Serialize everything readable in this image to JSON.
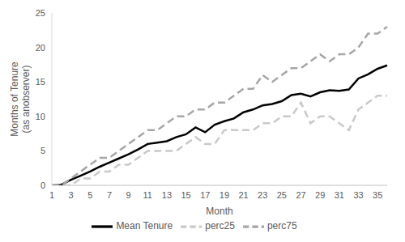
{
  "chart_data": {
    "type": "line",
    "xlabel": "Month",
    "ylabel": "Months of Tenure (as anobserver)",
    "categories": [
      1,
      null,
      3,
      null,
      5,
      null,
      7,
      null,
      9,
      null,
      11,
      null,
      13,
      null,
      15,
      null,
      17,
      null,
      19,
      null,
      21,
      null,
      23,
      null,
      25,
      null,
      27,
      null,
      29,
      null,
      31,
      null,
      33,
      null,
      35,
      null
    ],
    "series": [
      {
        "name": "Mean Tenure",
        "color": "#000000",
        "line_style": "solid",
        "marker": "none",
        "values": [
          0,
          0.1,
          0.8,
          1.4,
          2,
          2.7,
          3.3,
          3.9,
          4.5,
          5.2,
          6,
          6.2,
          6.4,
          7,
          7.4,
          8.4,
          7.7,
          8.8,
          9.3,
          9.7,
          10.6,
          11,
          11.6,
          11.8,
          12.2,
          13.1,
          13.3,
          12.9,
          13.5,
          13.8,
          13.7,
          13.9,
          15.5,
          16.1,
          16.9,
          17.4
        ]
      },
      {
        "name": "perc25",
        "color": "#c9c9c9",
        "line_style": "dashed",
        "marker": "none",
        "values": [
          0,
          0,
          0,
          1,
          1,
          2,
          2,
          3,
          3,
          4,
          5,
          5,
          5,
          5,
          6,
          7,
          6,
          6,
          8,
          8,
          8,
          8,
          9,
          9,
          10,
          10,
          12,
          9,
          10,
          10,
          9,
          8,
          11,
          12,
          13,
          13
        ]
      },
      {
        "name": "perc75",
        "color": "#a6a6a6",
        "line_style": "dashed",
        "marker": "none",
        "values": [
          0,
          0,
          1,
          2,
          3,
          4,
          4,
          5,
          6,
          7,
          8,
          8,
          9,
          10,
          10,
          11,
          11,
          12,
          12,
          13,
          14,
          14,
          16,
          15,
          16,
          17,
          17,
          18,
          19,
          18,
          19,
          19,
          20,
          22,
          22,
          23
        ]
      }
    ],
    "ylim": [
      0,
      25
    ],
    "yticks": [
      0,
      5,
      10,
      15,
      20,
      25
    ],
    "grid": false,
    "legend": "bottom"
  }
}
